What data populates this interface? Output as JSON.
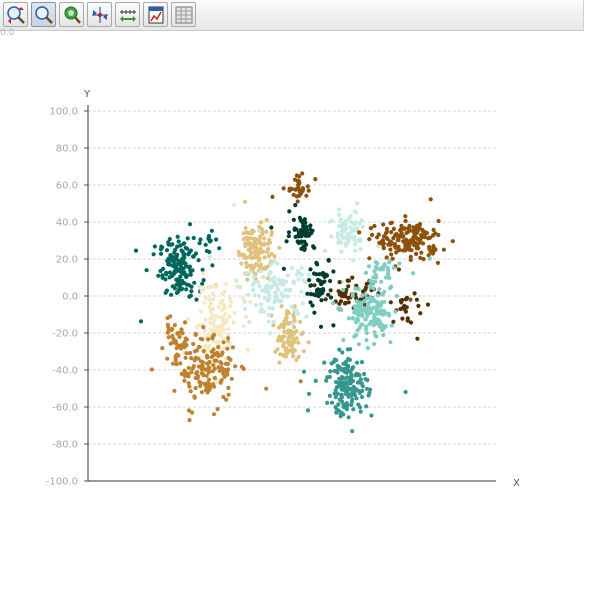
{
  "toolbar": {
    "buttons": [
      {
        "id": "zoom-in-out",
        "icon": "zoom-in-out-icon"
      },
      {
        "id": "zoom",
        "icon": "magnifier-icon",
        "active": true
      },
      {
        "id": "pan",
        "icon": "hand-pan-icon"
      },
      {
        "id": "center",
        "icon": "center-axes-icon"
      },
      {
        "id": "scale",
        "icon": "axis-scale-icon"
      },
      {
        "id": "export",
        "icon": "save-chart-icon"
      },
      {
        "id": "data-table",
        "icon": "data-table-icon"
      }
    ]
  },
  "corner_value": "0.0",
  "chart_data": {
    "type": "scatter",
    "xlabel": "X",
    "ylabel": "Y",
    "ylim": [
      -100,
      100
    ],
    "xlim": [
      -100,
      100
    ],
    "yticks": [
      "100.0",
      "80.0",
      "60.0",
      "40.0",
      "20.0",
      "0.0",
      "-20.0",
      "-40.0",
      "-60.0",
      "-80.0",
      "-100.0"
    ],
    "grid": "horizontal dashed",
    "legend": "none",
    "clusters": [
      {
        "color": "#01665e",
        "cx": -55,
        "cy": 15,
        "sx": 5,
        "sy": 8,
        "n": 140
      },
      {
        "color": "#01665e",
        "cx": -40,
        "cy": 30,
        "sx": 3,
        "sy": 3,
        "n": 12
      },
      {
        "color": "#dfc27d",
        "cx": -18,
        "cy": 25,
        "sx": 4,
        "sy": 8,
        "n": 110
      },
      {
        "color": "#dfc27d",
        "cx": -2,
        "cy": -22,
        "sx": 3,
        "sy": 7,
        "n": 85
      },
      {
        "color": "#f6e8c3",
        "cx": -38,
        "cy": -15,
        "sx": 6,
        "sy": 12,
        "n": 120
      },
      {
        "color": "#bf812d",
        "cx": -42,
        "cy": -40,
        "sx": 7,
        "sy": 9,
        "n": 150
      },
      {
        "color": "#bf812d",
        "cx": -58,
        "cy": -25,
        "sx": 3,
        "sy": 5,
        "n": 35
      },
      {
        "color": "#c7eae5",
        "cx": -8,
        "cy": 3,
        "sx": 8,
        "sy": 7,
        "n": 110
      },
      {
        "color": "#c7eae5",
        "cx": 28,
        "cy": 35,
        "sx": 5,
        "sy": 6,
        "n": 70
      },
      {
        "color": "#003c30",
        "cx": 5,
        "cy": 35,
        "sx": 3,
        "sy": 5,
        "n": 55
      },
      {
        "color": "#003c30",
        "cx": 14,
        "cy": 7,
        "sx": 3,
        "sy": 7,
        "n": 50
      },
      {
        "color": "#8c510a",
        "cx": 4,
        "cy": 58,
        "sx": 3,
        "sy": 3,
        "n": 35
      },
      {
        "color": "#8c510a",
        "cx": 57,
        "cy": 30,
        "sx": 8,
        "sy": 5,
        "n": 160
      },
      {
        "color": "#543005",
        "cx": 30,
        "cy": 0,
        "sx": 6,
        "sy": 4,
        "n": 55
      },
      {
        "color": "#543005",
        "cx": 56,
        "cy": -6,
        "sx": 3,
        "sy": 4,
        "n": 25
      },
      {
        "color": "#80cdc1",
        "cx": 38,
        "cy": -10,
        "sx": 6,
        "sy": 8,
        "n": 130
      },
      {
        "color": "#80cdc1",
        "cx": 45,
        "cy": 12,
        "sx": 4,
        "sy": 4,
        "n": 30
      },
      {
        "color": "#35978f",
        "cx": 27,
        "cy": -48,
        "sx": 5,
        "sy": 8,
        "n": 160
      }
    ]
  }
}
